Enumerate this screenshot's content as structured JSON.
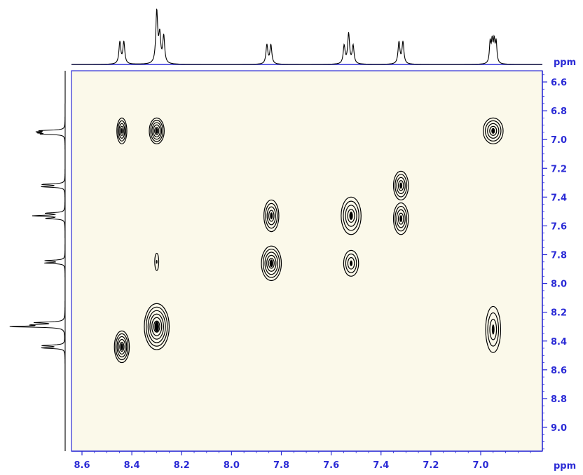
{
  "chart_data": {
    "type": "contour",
    "title": "",
    "colors": {
      "axis": "#2b2bd6",
      "trace": "#000000",
      "background": "#fbf9ea"
    },
    "x_axis": {
      "unit": "ppm",
      "range": [
        8.6,
        6.8
      ],
      "ticks": [
        {
          "value": 8.6,
          "label": "8.6"
        },
        {
          "value": 8.4,
          "label": "8.4"
        },
        {
          "value": 8.2,
          "label": "8.2"
        },
        {
          "value": 8.0,
          "label": "8.0"
        },
        {
          "value": 7.8,
          "label": "7.8"
        },
        {
          "value": 7.6,
          "label": "7.6"
        },
        {
          "value": 7.4,
          "label": "7.4"
        },
        {
          "value": 7.2,
          "label": "7.2"
        },
        {
          "value": 7.0,
          "label": "7.0"
        }
      ]
    },
    "y_axis": {
      "unit": "ppm",
      "range": [
        6.5,
        9.2
      ],
      "ticks": [
        {
          "value": 6.6,
          "label": "6.6"
        },
        {
          "value": 6.8,
          "label": "6.8"
        },
        {
          "value": 7.0,
          "label": "7.0"
        },
        {
          "value": 7.2,
          "label": "7.2"
        },
        {
          "value": 7.4,
          "label": "7.4"
        },
        {
          "value": 7.6,
          "label": "7.6"
        },
        {
          "value": 7.8,
          "label": "7.8"
        },
        {
          "value": 8.0,
          "label": "8.0"
        },
        {
          "value": 8.2,
          "label": "8.2"
        },
        {
          "value": 8.4,
          "label": "8.4"
        },
        {
          "value": 8.6,
          "label": "8.6"
        },
        {
          "value": 8.8,
          "label": "8.8"
        },
        {
          "value": 9.0,
          "label": "9.0"
        }
      ]
    },
    "projection_peaks": [
      {
        "shift": 8.44,
        "height": 0.4,
        "multiplet": "doublet"
      },
      {
        "shift": 8.3,
        "height": 0.95,
        "multiplet": "singlet"
      },
      {
        "shift": 8.28,
        "height": 0.5,
        "multiplet": "doublet"
      },
      {
        "shift": 7.85,
        "height": 0.35,
        "multiplet": "doublet"
      },
      {
        "shift": 7.53,
        "height": 0.55,
        "multiplet": "triplet"
      },
      {
        "shift": 7.32,
        "height": 0.4,
        "multiplet": "doublet"
      },
      {
        "shift": 6.95,
        "height": 0.45,
        "multiplet": "multiplet"
      }
    ],
    "cross_peaks": [
      {
        "x": 8.44,
        "y": 6.94,
        "rx": 0.02,
        "ry": 0.09,
        "levels": 4
      },
      {
        "x": 8.3,
        "y": 6.94,
        "rx": 0.03,
        "ry": 0.09,
        "levels": 5
      },
      {
        "x": 6.95,
        "y": 6.94,
        "rx": 0.04,
        "ry": 0.09,
        "levels": 4
      },
      {
        "x": 7.84,
        "y": 7.53,
        "rx": 0.03,
        "ry": 0.11,
        "levels": 4
      },
      {
        "x": 7.84,
        "y": 7.86,
        "rx": 0.04,
        "ry": 0.12,
        "levels": 5
      },
      {
        "x": 7.52,
        "y": 7.53,
        "rx": 0.04,
        "ry": 0.13,
        "levels": 4
      },
      {
        "x": 7.52,
        "y": 7.86,
        "rx": 0.03,
        "ry": 0.09,
        "levels": 3
      },
      {
        "x": 7.32,
        "y": 7.32,
        "rx": 0.03,
        "ry": 0.1,
        "levels": 4
      },
      {
        "x": 7.32,
        "y": 7.55,
        "rx": 0.03,
        "ry": 0.11,
        "levels": 4
      },
      {
        "x": 8.3,
        "y": 8.3,
        "rx": 0.05,
        "ry": 0.16,
        "levels": 6
      },
      {
        "x": 8.44,
        "y": 8.44,
        "rx": 0.03,
        "ry": 0.11,
        "levels": 5
      },
      {
        "x": 6.95,
        "y": 8.32,
        "rx": 0.03,
        "ry": 0.16,
        "levels": 3
      },
      {
        "x": 8.3,
        "y": 7.85,
        "rx": 0.008,
        "ry": 0.06,
        "levels": 1
      }
    ]
  }
}
